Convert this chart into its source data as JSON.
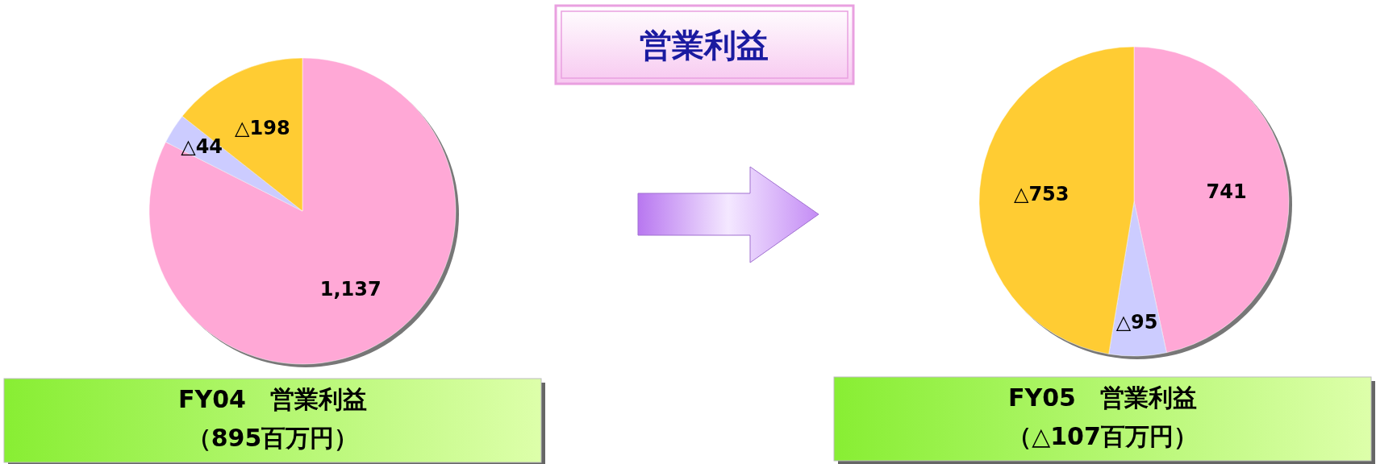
{
  "chart_data": [
    {
      "type": "pie",
      "title": "FY04　営業利益",
      "subtitle": "（895百万円）",
      "annotations": [
        "営業利益"
      ],
      "categories": [
        null,
        null,
        null
      ],
      "values": [
        1137,
        44,
        198
      ],
      "value_labels": [
        "1,137",
        "△44",
        "△198"
      ],
      "colors": [
        "#ffa8d6",
        "#ccccff",
        "#ffcc33"
      ]
    },
    {
      "type": "pie",
      "title": "FY05　営業利益",
      "subtitle": "（△107百万円）",
      "categories": [
        null,
        null,
        null
      ],
      "values": [
        741,
        95,
        753
      ],
      "value_labels": [
        "741",
        "△95",
        "△753"
      ],
      "colors": [
        "#ffa8d6",
        "#ccccff",
        "#ffcc33"
      ]
    }
  ]
}
